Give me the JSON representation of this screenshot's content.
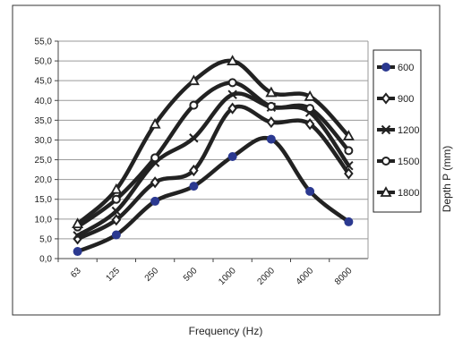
{
  "chart_data": {
    "type": "line",
    "title": "",
    "xlabel": "Frequency (Hz)",
    "ylabel": "Depth P (mm)",
    "categories": [
      "63",
      "125",
      "250",
      "500",
      "1000",
      "2000",
      "4000",
      "8000"
    ],
    "ylim": [
      0,
      55
    ],
    "yticks": [
      "0,0",
      "5,0",
      "10,0",
      "15,0",
      "20,0",
      "25,0",
      "30,0",
      "35,0",
      "40,0",
      "45,0",
      "50,0",
      "55,0"
    ],
    "grid": true,
    "legend": "right",
    "series": [
      {
        "name": "600",
        "marker": "circle-filled",
        "color": "#2b3990",
        "values": [
          1.8,
          6.0,
          14.5,
          18.3,
          25.8,
          30.2,
          17.0,
          9.3
        ]
      },
      {
        "name": "900",
        "marker": "diamond",
        "color": "#222222",
        "values": [
          5.0,
          9.8,
          19.3,
          22.3,
          38.0,
          34.5,
          34.0,
          21.5
        ]
      },
      {
        "name": "1200",
        "marker": "x",
        "color": "#222222",
        "values": [
          5.8,
          12.0,
          24.3,
          30.5,
          41.5,
          38.3,
          37.0,
          23.5
        ]
      },
      {
        "name": "1500",
        "marker": "circle-open",
        "color": "#222222",
        "values": [
          8.0,
          15.0,
          25.5,
          38.8,
          44.5,
          38.5,
          38.0,
          27.3
        ]
      },
      {
        "name": "1800",
        "marker": "triangle-open",
        "color": "#222222",
        "values": [
          8.8,
          17.5,
          34.0,
          45.0,
          50.0,
          42.0,
          41.0,
          31.0
        ]
      }
    ]
  }
}
